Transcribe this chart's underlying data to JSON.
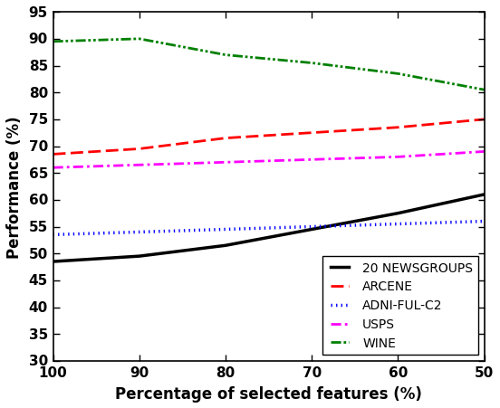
{
  "x": [
    100,
    90,
    80,
    70,
    60,
    50
  ],
  "newsgroups": [
    48.5,
    49.5,
    51.5,
    54.5,
    57.5,
    61.0
  ],
  "arcene": [
    68.5,
    69.5,
    71.5,
    72.5,
    73.5,
    75.0
  ],
  "adni": [
    53.5,
    54.0,
    54.5,
    55.0,
    55.5,
    56.0
  ],
  "usps": [
    66.0,
    66.5,
    67.0,
    67.5,
    68.0,
    69.0
  ],
  "wine": [
    89.5,
    90.0,
    87.0,
    85.5,
    83.5,
    80.5
  ],
  "ylabel": "Performance (%)",
  "xlabel": "Percentage of selected features (%)",
  "ylim": [
    30,
    95
  ],
  "xlim": [
    100,
    50
  ],
  "yticks": [
    30,
    35,
    40,
    45,
    50,
    55,
    60,
    65,
    70,
    75,
    80,
    85,
    90,
    95
  ],
  "xticks": [
    100,
    90,
    80,
    70,
    60,
    50
  ],
  "legend_labels": [
    "20 NEWSGROUPS",
    "ARCENE",
    "ADNI-FUL-C2",
    "USPS",
    "WINE"
  ],
  "tick_fontsize": 11,
  "label_fontsize": 12,
  "legend_fontsize": 10
}
